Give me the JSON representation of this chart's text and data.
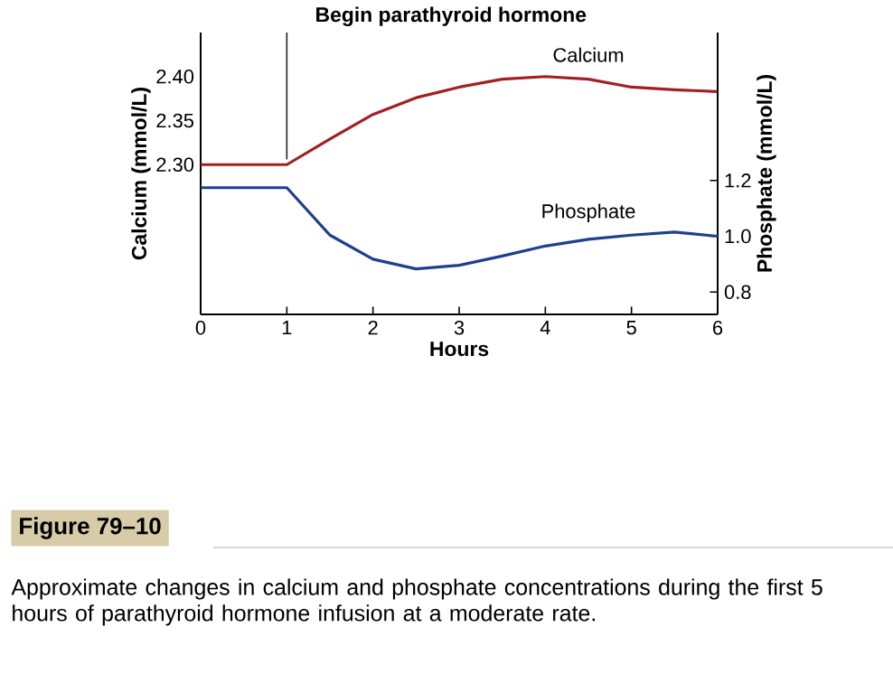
{
  "chart_data": {
    "type": "line",
    "xlabel": "Hours",
    "ylabel": "Calcium (mmol/L)",
    "y2label": "Phosphate (mmol/L)",
    "xlim": [
      0,
      6
    ],
    "xticks": [
      0,
      1,
      2,
      3,
      4,
      5,
      6
    ],
    "ylim": [
      2.13,
      2.45
    ],
    "yticks": [
      {
        "value": 2.3,
        "label": "2.30"
      },
      {
        "value": 2.35,
        "label": "2.35"
      },
      {
        "value": 2.4,
        "label": "2.40"
      }
    ],
    "y2lim": [
      0.72,
      1.73
    ],
    "y2ticks": [
      {
        "value": 0.8,
        "label": "0.8"
      },
      {
        "value": 1.0,
        "label": "1.0"
      },
      {
        "value": 1.2,
        "label": "1.2"
      }
    ],
    "series": [
      {
        "name": "Calcium",
        "color": "#a31f24",
        "x": [
          0,
          1,
          1.5,
          2,
          2.5,
          3,
          3.5,
          4,
          4.5,
          5,
          5.5,
          6
        ],
        "values": [
          2.3,
          2.3,
          2.329,
          2.357,
          2.376,
          2.388,
          2.397,
          2.4,
          2.397,
          2.388,
          2.385,
          2.383
        ]
      },
      {
        "name": "Phosphate",
        "color": "#1f3f8f",
        "axis": "y2",
        "x": [
          0,
          1,
          1.5,
          2,
          2.5,
          3,
          3.5,
          4,
          4.5,
          5,
          5.5,
          6
        ],
        "values": [
          1.174,
          1.174,
          1.004,
          0.918,
          0.883,
          0.896,
          0.929,
          0.965,
          0.989,
          1.004,
          1.015,
          1.0
        ]
      }
    ],
    "ref_lines": [
      {
        "axis": "x",
        "value": 1,
        "label": "Begin parathyroid hormone",
        "color": "#222222"
      }
    ],
    "annotations": [
      "Figure 79–10",
      "Approximate changes in calcium and phosphate concentrations during the first 5 hours of parathyroid hormone infusion at a moderate rate."
    ],
    "grid": false,
    "legend": false,
    "marker": "none",
    "line_style": "solid"
  }
}
